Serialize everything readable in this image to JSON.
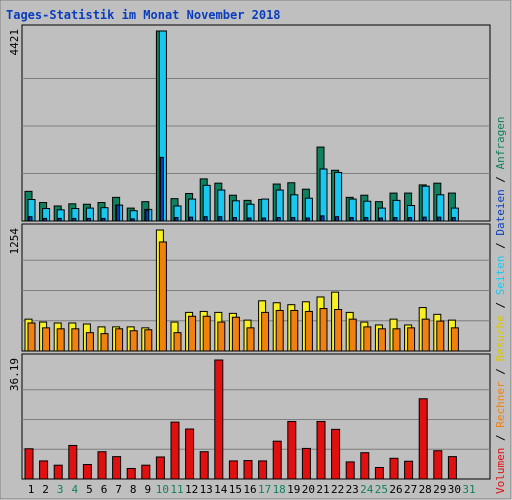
{
  "title": "Tages-Statistik im Monat November 2018",
  "colors": {
    "frame_bg": "#bfbfbf",
    "frame_border": "#7f7f7f",
    "plot_bg": "#bfbfbf",
    "title": "#0a3cbe",
    "grid": "#7f7f7f",
    "bar_outline": "#000000",
    "anfragen": "#0f8060",
    "dateien": "#18c8f0",
    "seiten": "#0a3cbe",
    "besuche": "#f8f020",
    "rechner": "#f08010",
    "volumen": "#e01010",
    "weekday_label": "#000000",
    "weekend_label": "#0f8060"
  },
  "legend_right": [
    {
      "text": "Volumen",
      "color": "#e01010"
    },
    {
      "text": " / ",
      "color": "#000000"
    },
    {
      "text": "Rechner",
      "color": "#f08010"
    },
    {
      "text": " / ",
      "color": "#000000"
    },
    {
      "text": "Besuche",
      "color": "#d8c800"
    },
    {
      "text": " / ",
      "color": "#000000"
    },
    {
      "text": "Seiten",
      "color": "#18c8f0"
    },
    {
      "text": " / ",
      "color": "#000000"
    },
    {
      "text": "Dateien",
      "color": "#0a3cbe"
    },
    {
      "text": " / ",
      "color": "#000000"
    },
    {
      "text": "Anfragen",
      "color": "#0f8060"
    }
  ],
  "chart_data": {
    "type": "bar",
    "title": "Tages-Statistik im Monat November 2018",
    "categories": [
      "1",
      "2",
      "3",
      "4",
      "5",
      "6",
      "7",
      "8",
      "9",
      "10",
      "11",
      "12",
      "13",
      "14",
      "15",
      "16",
      "17",
      "18",
      "19",
      "20",
      "21",
      "22",
      "23",
      "24",
      "25",
      "26",
      "27",
      "28",
      "29",
      "30",
      "31"
    ],
    "weekend_days": [
      "3",
      "4",
      "10",
      "11",
      "17",
      "18",
      "24",
      "25",
      "31"
    ],
    "panels": [
      {
        "name": "hits",
        "ymax": 4421,
        "ymax_label": "4421",
        "series": [
          {
            "name": "Anfragen",
            "values": [
              690,
              430,
              350,
              400,
              390,
              430,
              550,
              300,
              450,
              4421,
              520,
              640,
              980,
              880,
              600,
              480,
              500,
              860,
              890,
              740,
              1720,
              1180,
              550,
              600,
              450,
              650,
              650,
              840,
              880,
              650,
              0
            ]
          },
          {
            "name": "Dateien",
            "values": [
              500,
              290,
              260,
              290,
              300,
              310,
              370,
              240,
              270,
              4421,
              350,
              510,
              830,
              720,
              470,
              390,
              510,
              720,
              610,
              530,
              1210,
              1130,
              510,
              460,
              300,
              480,
              360,
              810,
              610,
              300,
              0
            ]
          },
          {
            "name": "Seiten",
            "values": [
              100,
              60,
              60,
              60,
              60,
              60,
              370,
              50,
              250,
              1480,
              80,
              90,
              100,
              100,
              80,
              70,
              70,
              80,
              80,
              70,
              120,
              100,
              80,
              80,
              70,
              80,
              80,
              90,
              90,
              80,
              0
            ]
          }
        ]
      },
      {
        "name": "visits",
        "ymax": 1254,
        "ymax_label": "1254",
        "series": [
          {
            "name": "Besuche",
            "values": [
              330,
              300,
              290,
              290,
              280,
              250,
              250,
              250,
              240,
              1254,
              300,
              400,
              410,
              400,
              390,
              320,
              520,
              500,
              480,
              510,
              560,
              610,
              400,
              300,
              270,
              330,
              270,
              450,
              380,
              320,
              0
            ]
          },
          {
            "name": "Rechner",
            "values": [
              290,
              240,
              230,
              230,
              190,
              180,
              230,
              210,
              220,
              1130,
              190,
              360,
              360,
              300,
              350,
              240,
              400,
              420,
              420,
              410,
              440,
              430,
              330,
              250,
              230,
              230,
              240,
              330,
              310,
              240,
              0
            ]
          }
        ]
      },
      {
        "name": "kbytes",
        "ymax": 36.19,
        "ymax_label": "36.19",
        "series": [
          {
            "name": "Volumen",
            "values": [
              9.2,
              5.5,
              4.2,
              10.2,
              4.4,
              8.3,
              6.8,
              3.2,
              4.2,
              6.7,
              17.3,
              15.2,
              8.3,
              36.19,
              5.5,
              5.6,
              5.5,
              11.5,
              17.5,
              9.3,
              17.5,
              15.1,
              5.2,
              8.0,
              3.5,
              6.3,
              5.4,
              24.4,
              8.6,
              6.8,
              0
            ]
          }
        ]
      }
    ]
  }
}
